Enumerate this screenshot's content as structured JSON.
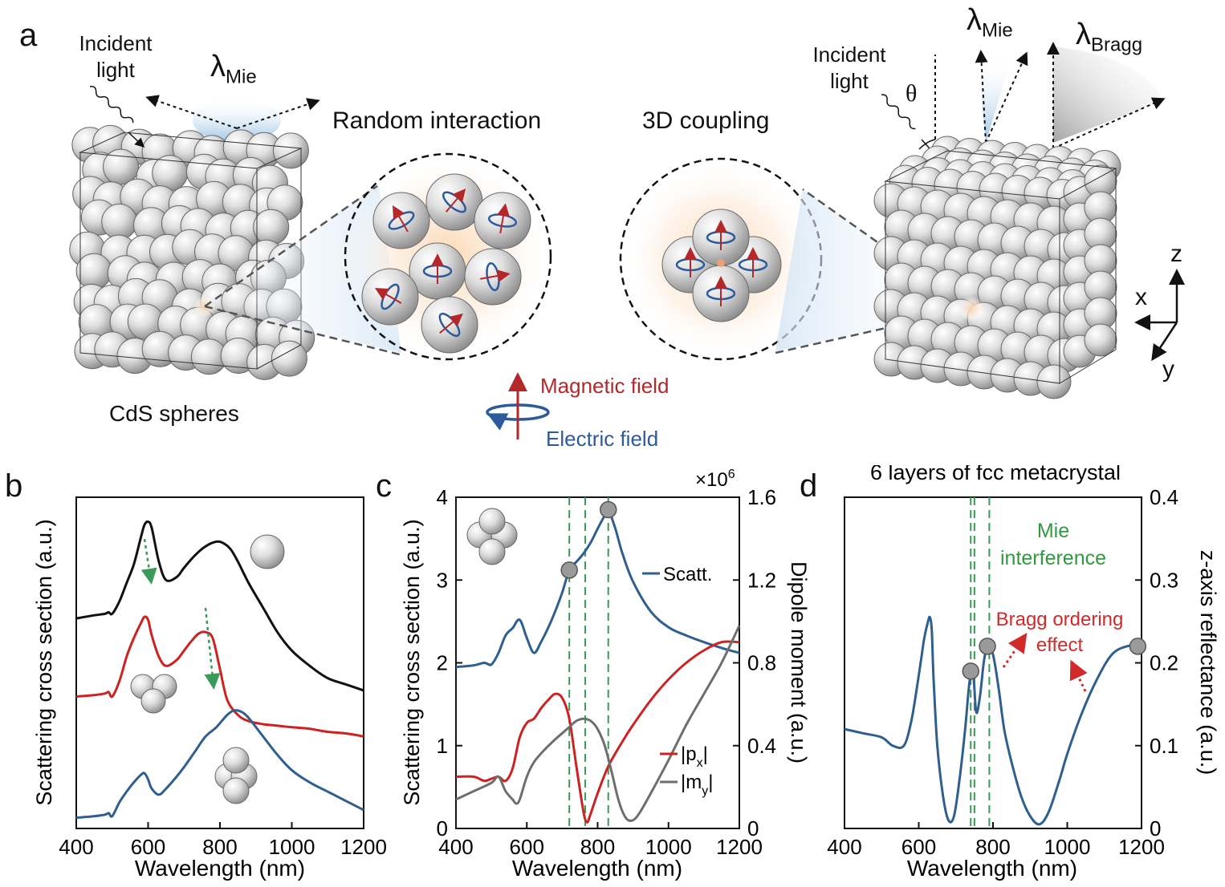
{
  "panel_a": {
    "letter": "a",
    "left_incident": "Incident\nlight",
    "left_lambda": "λ",
    "left_lambda_sub": "Mie",
    "random_title": "Random interaction",
    "coupling_title": "3D coupling",
    "right_incident": "Incident\nlight",
    "theta": "θ",
    "right_lambda_mie": "λ",
    "right_lambda_mie_sub": "Mie",
    "right_lambda_bragg": "λ",
    "right_lambda_bragg_sub": "Bragg",
    "cds_label": "CdS spheres",
    "magnetic_label": "Magnetic field",
    "electric_label": "Electric field",
    "axis_z": "z",
    "axis_x": "x",
    "axis_y": "y",
    "colors": {
      "magnetic": "#b5282a",
      "electric": "#2d5a9a",
      "glow_blue": "#a9cbe8",
      "sphere": "#d8d8d8"
    }
  },
  "chart_data": [
    {
      "panel": "b",
      "type": "line",
      "xlabel": "Wavelength (nm)",
      "ylabel": "Scattering cross section (a.u.)",
      "xlim": [
        400,
        1200
      ],
      "xticks": [
        "400",
        "600",
        "800",
        "1000",
        "1200"
      ],
      "series": [
        {
          "color": "#111111",
          "x": [
            400,
            450,
            480,
            490,
            500,
            520,
            540,
            560,
            580,
            590,
            600,
            610,
            630,
            650,
            680,
            700,
            730,
            760,
            790,
            810,
            830,
            850,
            880,
            920,
            960,
            1000,
            1050,
            1100,
            1150,
            1200
          ],
          "y": [
            0.685,
            0.695,
            0.7,
            0.705,
            0.7,
            0.74,
            0.8,
            0.86,
            0.95,
            0.99,
            1.0,
            0.98,
            0.87,
            0.81,
            0.82,
            0.85,
            0.89,
            0.92,
            0.935,
            0.93,
            0.91,
            0.87,
            0.8,
            0.72,
            0.64,
            0.58,
            0.53,
            0.49,
            0.47,
            0.45
          ]
        },
        {
          "color": "#cc2222",
          "x": [
            400,
            450,
            480,
            490,
            500,
            520,
            540,
            560,
            580,
            590,
            600,
            610,
            630,
            650,
            680,
            700,
            720,
            740,
            760,
            780,
            800,
            820,
            850,
            880,
            920,
            960,
            1000,
            1050,
            1100,
            1150,
            1200
          ],
          "y": [
            0.43,
            0.435,
            0.44,
            0.445,
            0.43,
            0.48,
            0.56,
            0.62,
            0.67,
            0.69,
            0.68,
            0.63,
            0.56,
            0.53,
            0.55,
            0.58,
            0.61,
            0.635,
            0.64,
            0.62,
            0.52,
            0.42,
            0.37,
            0.35,
            0.34,
            0.335,
            0.33,
            0.325,
            0.315,
            0.31,
            0.3
          ]
        },
        {
          "color": "#2f5f8f",
          "x": [
            400,
            450,
            480,
            490,
            500,
            520,
            540,
            560,
            580,
            590,
            600,
            610,
            630,
            650,
            680,
            700,
            730,
            760,
            790,
            820,
            840,
            860,
            880,
            920,
            960,
            1000,
            1050,
            1100,
            1150,
            1200
          ],
          "y": [
            0.035,
            0.04,
            0.045,
            0.05,
            0.04,
            0.085,
            0.12,
            0.15,
            0.175,
            0.18,
            0.16,
            0.13,
            0.11,
            0.13,
            0.17,
            0.2,
            0.25,
            0.3,
            0.33,
            0.37,
            0.385,
            0.38,
            0.36,
            0.3,
            0.24,
            0.19,
            0.15,
            0.12,
            0.09,
            0.06
          ]
        }
      ]
    },
    {
      "panel": "c",
      "type": "line",
      "xlabel": "Wavelength (nm)",
      "ylabel": "Scattering cross section (a.u.)",
      "ylabel_right": "Dipole moment (a.u.)",
      "right_exponent": "×10",
      "right_exponent_sup": "6",
      "xlim": [
        400,
        1200
      ],
      "ylim": [
        0,
        4
      ],
      "ylim_right": [
        0,
        1.6
      ],
      "xticks": [
        "400",
        "600",
        "800",
        "1000",
        "1200"
      ],
      "yticks": [
        "0",
        "1",
        "2",
        "3",
        "4"
      ],
      "yticks_right": [
        "0",
        "0.4",
        "0.8",
        "1.2",
        "1.6"
      ],
      "vlines": [
        720,
        765,
        830
      ],
      "vline_color": "#3a9a5a",
      "markers": [
        [
          720,
          3.12
        ],
        [
          830,
          3.85
        ]
      ],
      "series": [
        {
          "name": "Scatt.",
          "color": "#2f5f8f",
          "axis": "left",
          "x": [
            400,
            450,
            480,
            500,
            520,
            540,
            560,
            580,
            600,
            620,
            640,
            660,
            680,
            700,
            720,
            740,
            760,
            780,
            800,
            820,
            830,
            850,
            870,
            900,
            950,
            1000,
            1050,
            1100,
            1150,
            1200
          ],
          "y": [
            1.95,
            1.97,
            2.0,
            1.98,
            2.12,
            2.33,
            2.42,
            2.52,
            2.3,
            2.12,
            2.25,
            2.42,
            2.62,
            2.85,
            3.12,
            3.22,
            3.32,
            3.45,
            3.62,
            3.78,
            3.85,
            3.62,
            3.32,
            2.98,
            2.62,
            2.43,
            2.33,
            2.25,
            2.18,
            2.12
          ]
        },
        {
          "name": "|p_x|",
          "color": "#cc2222",
          "axis": "right",
          "x": [
            400,
            450,
            480,
            500,
            520,
            540,
            560,
            580,
            600,
            620,
            640,
            660,
            680,
            700,
            720,
            740,
            760,
            770,
            780,
            800,
            830,
            870,
            900,
            950,
            1000,
            1050,
            1100,
            1150,
            1200
          ],
          "y": [
            0.25,
            0.25,
            0.23,
            0.24,
            0.25,
            0.23,
            0.29,
            0.44,
            0.51,
            0.53,
            0.58,
            0.62,
            0.65,
            0.63,
            0.53,
            0.3,
            0.08,
            0.03,
            0.07,
            0.17,
            0.3,
            0.42,
            0.5,
            0.62,
            0.72,
            0.8,
            0.86,
            0.9,
            0.9
          ]
        },
        {
          "name": "|m_y|",
          "color": "#6e6e6e",
          "axis": "right",
          "x": [
            400,
            450,
            500,
            520,
            540,
            560,
            570,
            580,
            600,
            620,
            650,
            680,
            700,
            720,
            740,
            760,
            780,
            800,
            820,
            840,
            860,
            880,
            900,
            920,
            950,
            1000,
            1050,
            1100,
            1150,
            1200
          ],
          "y": [
            0.14,
            0.18,
            0.22,
            0.25,
            0.18,
            0.14,
            0.12,
            0.14,
            0.25,
            0.32,
            0.38,
            0.43,
            0.46,
            0.49,
            0.52,
            0.53,
            0.52,
            0.48,
            0.4,
            0.27,
            0.13,
            0.05,
            0.04,
            0.08,
            0.17,
            0.33,
            0.5,
            0.65,
            0.8,
            0.98
          ]
        }
      ],
      "legend_scatt": "Scatt.",
      "legend_p": "|p",
      "legend_p_sub": "x",
      "legend_m": "|m",
      "legend_m_sub": "y"
    },
    {
      "panel": "d",
      "type": "line",
      "title": "6 layers of fcc metacrystal",
      "xlabel": "Wavelength (nm)",
      "ylabel_right": "z-axis reflectance (a.u.)",
      "xlim": [
        400,
        1200
      ],
      "ylim": [
        0,
        0.4
      ],
      "xticks": [
        "400",
        "600",
        "800",
        "1000",
        "1200"
      ],
      "yticks_right": [
        "0",
        "0.1",
        "0.2",
        "0.3",
        "0.4"
      ],
      "vlines": [
        740,
        750,
        790
      ],
      "vline_color": "#3a9a5a",
      "markers": [
        [
          740,
          0.19
        ],
        [
          785,
          0.22
        ],
        [
          1190,
          0.22
        ]
      ],
      "annot_mie": "Mie\ninterference",
      "annot_bragg": "Bragg ordering\neffect",
      "series": [
        {
          "color": "#2f5f8f",
          "x": [
            400,
            450,
            500,
            530,
            560,
            580,
            595,
            605,
            615,
            625,
            630,
            635,
            640,
            650,
            665,
            680,
            695,
            710,
            725,
            735,
            742,
            748,
            755,
            765,
            775,
            785,
            800,
            815,
            830,
            850,
            875,
            900,
            925,
            950,
            980,
            1000,
            1040,
            1080,
            1120,
            1160,
            1190,
            1200
          ],
          "y": [
            0.12,
            0.115,
            0.11,
            0.1,
            0.1,
            0.13,
            0.17,
            0.2,
            0.23,
            0.25,
            0.255,
            0.24,
            0.18,
            0.1,
            0.04,
            0.01,
            0.015,
            0.06,
            0.12,
            0.17,
            0.19,
            0.18,
            0.14,
            0.16,
            0.2,
            0.22,
            0.21,
            0.17,
            0.12,
            0.08,
            0.04,
            0.015,
            0.005,
            0.02,
            0.06,
            0.09,
            0.14,
            0.18,
            0.21,
            0.22,
            0.22,
            0.22
          ]
        }
      ]
    }
  ]
}
